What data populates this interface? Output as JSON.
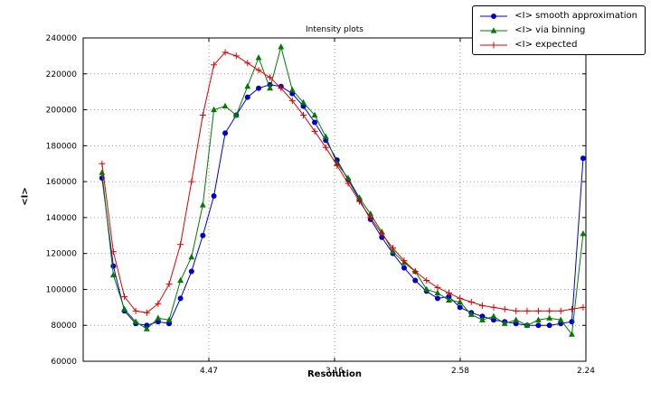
{
  "chart_data": {
    "type": "line",
    "title": "Intensity plots",
    "xlabel": "Resolution",
    "ylabel": "<I>",
    "xlim": [
      0,
      0.2
    ],
    "ylim": [
      60000,
      240000
    ],
    "grid": true,
    "legend_position": "top-right",
    "xticks": [
      {
        "value": 0.05,
        "label": "4.47"
      },
      {
        "value": 0.1,
        "label": "3.16"
      },
      {
        "value": 0.15,
        "label": "2.58"
      },
      {
        "value": 0.2,
        "label": "2.24"
      }
    ],
    "yticks": [
      {
        "value": 60000,
        "label": "60000"
      },
      {
        "value": 80000,
        "label": "80000"
      },
      {
        "value": 100000,
        "label": "100000"
      },
      {
        "value": 120000,
        "label": "120000"
      },
      {
        "value": 140000,
        "label": "140000"
      },
      {
        "value": 160000,
        "label": "160000"
      },
      {
        "value": 180000,
        "label": "180000"
      },
      {
        "value": 200000,
        "label": "200000"
      },
      {
        "value": 220000,
        "label": "220000"
      },
      {
        "value": 240000,
        "label": "240000"
      }
    ],
    "x": [
      0.0075,
      0.012,
      0.0164,
      0.0209,
      0.0253,
      0.0298,
      0.0342,
      0.0387,
      0.0431,
      0.0476,
      0.052,
      0.0565,
      0.0609,
      0.0654,
      0.0698,
      0.0743,
      0.0787,
      0.0832,
      0.0876,
      0.0921,
      0.0965,
      0.101,
      0.1054,
      0.1099,
      0.1143,
      0.1188,
      0.1232,
      0.1277,
      0.1321,
      0.1366,
      0.141,
      0.1455,
      0.1499,
      0.1544,
      0.1588,
      0.1633,
      0.1677,
      0.1722,
      0.1766,
      0.1811,
      0.1855,
      0.19,
      0.1944,
      0.1989
    ],
    "series": [
      {
        "name": "<I> smooth approximation",
        "color": "#0000cc",
        "marker": "circle",
        "values": [
          162000,
          113000,
          88000,
          81000,
          80000,
          82000,
          81000,
          95000,
          110000,
          130000,
          152000,
          187000,
          197000,
          207000,
          212000,
          214000,
          213000,
          209000,
          202000,
          193000,
          183000,
          172000,
          161000,
          150000,
          139000,
          129000,
          120000,
          112000,
          105000,
          99000,
          95000,
          96000,
          90000,
          87000,
          85000,
          83000,
          82000,
          81000,
          80000,
          80000,
          80000,
          81000,
          82000,
          173000
        ]
      },
      {
        "name": "<I> via binning",
        "color": "#007a00",
        "marker": "triangle",
        "values": [
          165000,
          108000,
          89000,
          82000,
          78000,
          84000,
          83000,
          105000,
          118000,
          147000,
          200000,
          202000,
          197000,
          213000,
          229000,
          212000,
          235000,
          211000,
          204000,
          197000,
          185000,
          170000,
          162000,
          151000,
          142000,
          132000,
          121000,
          115000,
          110000,
          100000,
          98000,
          94000,
          93000,
          86000,
          83000,
          85000,
          81000,
          83000,
          80000,
          83000,
          84000,
          83000,
          75000,
          131000
        ]
      },
      {
        "name": "<I> expected",
        "color": "#e00000",
        "marker": "plus",
        "values": [
          170000,
          121000,
          96000,
          88000,
          87000,
          92000,
          103000,
          125000,
          160000,
          197000,
          225000,
          232000,
          230000,
          226000,
          222000,
          218000,
          212000,
          205000,
          197000,
          188000,
          179000,
          169000,
          159000,
          149000,
          140000,
          131000,
          123000,
          116000,
          110000,
          105000,
          101000,
          98000,
          95000,
          93000,
          91000,
          90000,
          89000,
          88000,
          88000,
          88000,
          88000,
          88000,
          89000,
          90000
        ]
      }
    ]
  }
}
